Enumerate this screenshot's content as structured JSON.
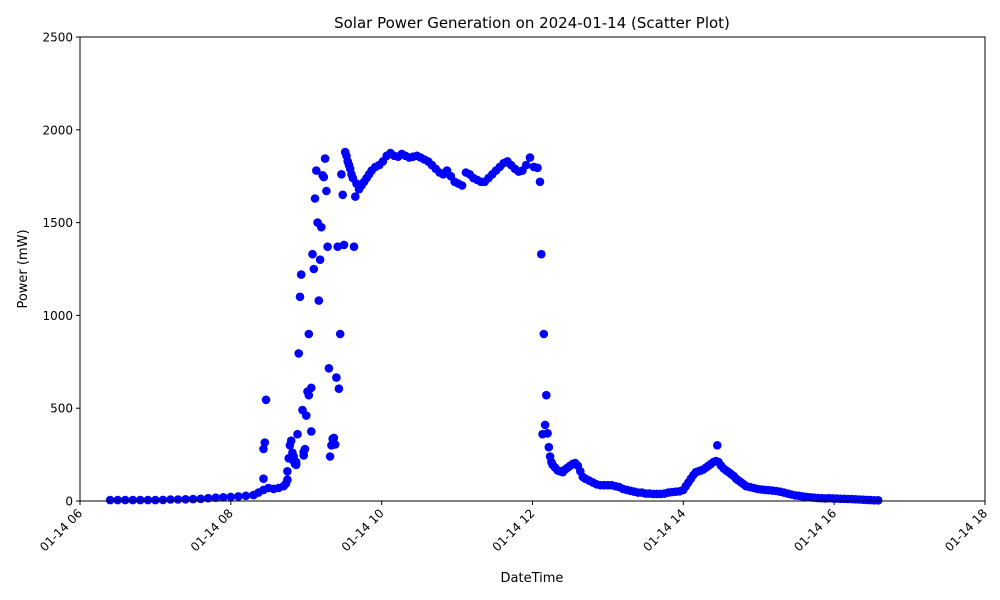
{
  "chart_data": {
    "type": "scatter",
    "title": "Solar Power Generation on 2024-01-14 (Scatter Plot)",
    "xlabel": "DateTime",
    "ylabel": "Power (mW)",
    "xlim_hours": [
      6,
      18
    ],
    "ylim": [
      0,
      2500
    ],
    "x_ticks": [
      {
        "hour": 6,
        "label": "01-14 06"
      },
      {
        "hour": 8,
        "label": "01-14 08"
      },
      {
        "hour": 10,
        "label": "01-14 10"
      },
      {
        "hour": 12,
        "label": "01-14 12"
      },
      {
        "hour": 14,
        "label": "01-14 14"
      },
      {
        "hour": 16,
        "label": "01-14 16"
      },
      {
        "hour": 18,
        "label": "01-14 18"
      }
    ],
    "y_ticks": [
      {
        "value": 0,
        "label": "0"
      },
      {
        "value": 500,
        "label": "500"
      },
      {
        "value": 1000,
        "label": "1000"
      },
      {
        "value": 1500,
        "label": "1500"
      },
      {
        "value": 2000,
        "label": "2000"
      },
      {
        "value": 2500,
        "label": "2500"
      }
    ],
    "grid": false,
    "marker_color": "#0000ff",
    "series": [
      {
        "points": [
          [
            "06:24",
            5
          ],
          [
            "06:30",
            5
          ],
          [
            "06:36",
            5
          ],
          [
            "06:42",
            5
          ],
          [
            "06:48",
            5
          ],
          [
            "06:54",
            5
          ],
          [
            "07:00",
            5
          ],
          [
            "07:06",
            6
          ],
          [
            "07:12",
            8
          ],
          [
            "07:18",
            8
          ],
          [
            "07:24",
            9
          ],
          [
            "07:30",
            10
          ],
          [
            "07:36",
            12
          ],
          [
            "07:42",
            15
          ],
          [
            "07:48",
            18
          ],
          [
            "07:54",
            20
          ],
          [
            "08:00",
            22
          ],
          [
            "08:06",
            25
          ],
          [
            "08:12",
            28
          ],
          [
            "08:18",
            32
          ],
          [
            "08:22",
            45
          ],
          [
            "08:26",
            60
          ],
          [
            "08:26",
            120
          ],
          [
            "08:26",
            280
          ],
          [
            "08:27",
            315
          ],
          [
            "08:28",
            545
          ],
          [
            "08:30",
            70
          ],
          [
            "08:34",
            65
          ],
          [
            "08:38",
            70
          ],
          [
            "08:42",
            80
          ],
          [
            "08:44",
            95
          ],
          [
            "08:45",
            115
          ],
          [
            "08:45",
            160
          ],
          [
            "08:46",
            230
          ],
          [
            "08:47",
            300
          ],
          [
            "08:48",
            325
          ],
          [
            "08:49",
            260
          ],
          [
            "08:50",
            240
          ],
          [
            "08:50",
            215
          ],
          [
            "08:51",
            200
          ],
          [
            "08:52",
            195
          ],
          [
            "08:52",
            210
          ],
          [
            "08:53",
            360
          ],
          [
            "08:54",
            795
          ],
          [
            "08:55",
            1100
          ],
          [
            "08:56",
            1220
          ],
          [
            "08:57",
            490
          ],
          [
            "08:58",
            265
          ],
          [
            "08:58",
            245
          ],
          [
            "08:59",
            280
          ],
          [
            "09:00",
            460
          ],
          [
            "09:01",
            590
          ],
          [
            "09:02",
            570
          ],
          [
            "09:02",
            900
          ],
          [
            "09:04",
            375
          ],
          [
            "09:04",
            610
          ],
          [
            "09:05",
            1330
          ],
          [
            "09:06",
            1250
          ],
          [
            "09:07",
            1630
          ],
          [
            "09:08",
            1780
          ],
          [
            "09:09",
            1500
          ],
          [
            "09:10",
            1080
          ],
          [
            "09:11",
            1300
          ],
          [
            "09:12",
            1475
          ],
          [
            "09:13",
            1755
          ],
          [
            "09:14",
            1745
          ],
          [
            "09:15",
            1845
          ],
          [
            "09:16",
            1670
          ],
          [
            "09:17",
            1370
          ],
          [
            "09:18",
            715
          ],
          [
            "09:19",
            240
          ],
          [
            "09:20",
            300
          ],
          [
            "09:21",
            335
          ],
          [
            "09:22",
            340
          ],
          [
            "09:23",
            305
          ],
          [
            "09:24",
            665
          ],
          [
            "09:25",
            1370
          ],
          [
            "09:26",
            605
          ],
          [
            "09:27",
            900
          ],
          [
            "09:28",
            1760
          ],
          [
            "09:29",
            1650
          ],
          [
            "09:30",
            1380
          ],
          [
            "09:31",
            1880
          ],
          [
            "09:32",
            1860
          ],
          [
            "09:33",
            1830
          ],
          [
            "09:34",
            1810
          ],
          [
            "09:35",
            1790
          ],
          [
            "09:36",
            1760
          ],
          [
            "09:37",
            1740
          ],
          [
            "09:38",
            1370
          ],
          [
            "09:39",
            1640
          ],
          [
            "09:40",
            1710
          ],
          [
            "09:42",
            1680
          ],
          [
            "09:44",
            1700
          ],
          [
            "09:46",
            1720
          ],
          [
            "09:48",
            1740
          ],
          [
            "09:50",
            1760
          ],
          [
            "09:52",
            1780
          ],
          [
            "09:55",
            1800
          ],
          [
            "09:58",
            1810
          ],
          [
            "10:01",
            1830
          ],
          [
            "10:04",
            1860
          ],
          [
            "10:07",
            1875
          ],
          [
            "10:10",
            1860
          ],
          [
            "10:13",
            1855
          ],
          [
            "10:16",
            1870
          ],
          [
            "10:19",
            1860
          ],
          [
            "10:22",
            1850
          ],
          [
            "10:25",
            1855
          ],
          [
            "10:28",
            1860
          ],
          [
            "10:31",
            1850
          ],
          [
            "10:34",
            1840
          ],
          [
            "10:37",
            1830
          ],
          [
            "10:40",
            1810
          ],
          [
            "10:43",
            1790
          ],
          [
            "10:46",
            1770
          ],
          [
            "10:49",
            1760
          ],
          [
            "10:52",
            1780
          ],
          [
            "10:55",
            1750
          ],
          [
            "10:58",
            1720
          ],
          [
            "11:01",
            1710
          ],
          [
            "11:04",
            1700
          ],
          [
            "11:07",
            1770
          ],
          [
            "11:10",
            1760
          ],
          [
            "11:13",
            1740
          ],
          [
            "11:16",
            1730
          ],
          [
            "11:19",
            1720
          ],
          [
            "11:22",
            1720
          ],
          [
            "11:25",
            1740
          ],
          [
            "11:28",
            1760
          ],
          [
            "11:31",
            1780
          ],
          [
            "11:34",
            1800
          ],
          [
            "11:37",
            1820
          ],
          [
            "11:40",
            1830
          ],
          [
            "11:43",
            1810
          ],
          [
            "11:46",
            1790
          ],
          [
            "11:49",
            1775
          ],
          [
            "11:52",
            1780
          ],
          [
            "11:55",
            1810
          ],
          [
            "11:58",
            1850
          ],
          [
            "12:01",
            1800
          ],
          [
            "12:04",
            1795
          ],
          [
            "12:06",
            1720
          ],
          [
            "12:07",
            1330
          ],
          [
            "12:08",
            360
          ],
          [
            "12:09",
            900
          ],
          [
            "12:10",
            410
          ],
          [
            "12:11",
            570
          ],
          [
            "12:12",
            365
          ],
          [
            "12:13",
            290
          ],
          [
            "12:14",
            240
          ],
          [
            "12:15",
            210
          ],
          [
            "12:16",
            195
          ],
          [
            "12:18",
            180
          ],
          [
            "12:20",
            165
          ],
          [
            "12:22",
            160
          ],
          [
            "12:24",
            155
          ],
          [
            "12:26",
            170
          ],
          [
            "12:28",
            180
          ],
          [
            "12:30",
            190
          ],
          [
            "12:32",
            200
          ],
          [
            "12:34",
            205
          ],
          [
            "12:36",
            190
          ],
          [
            "12:38",
            160
          ],
          [
            "12:40",
            130
          ],
          [
            "12:42",
            120
          ],
          [
            "12:45",
            110
          ],
          [
            "12:48",
            100
          ],
          [
            "12:51",
            90
          ],
          [
            "12:54",
            85
          ],
          [
            "12:57",
            85
          ],
          [
            "13:00",
            85
          ],
          [
            "13:03",
            85
          ],
          [
            "13:06",
            80
          ],
          [
            "13:09",
            75
          ],
          [
            "13:12",
            65
          ],
          [
            "13:15",
            60
          ],
          [
            "13:18",
            55
          ],
          [
            "13:21",
            50
          ],
          [
            "13:24",
            45
          ],
          [
            "13:27",
            45
          ],
          [
            "13:30",
            40
          ],
          [
            "13:33",
            40
          ],
          [
            "13:36",
            38
          ],
          [
            "13:39",
            38
          ],
          [
            "13:42",
            38
          ],
          [
            "13:45",
            40
          ],
          [
            "13:48",
            45
          ],
          [
            "13:51",
            48
          ],
          [
            "13:54",
            50
          ],
          [
            "13:57",
            52
          ],
          [
            "14:00",
            60
          ],
          [
            "14:02",
            80
          ],
          [
            "14:04",
            100
          ],
          [
            "14:06",
            120
          ],
          [
            "14:08",
            140
          ],
          [
            "14:10",
            155
          ],
          [
            "14:12",
            160
          ],
          [
            "14:14",
            165
          ],
          [
            "14:16",
            170
          ],
          [
            "14:18",
            180
          ],
          [
            "14:20",
            190
          ],
          [
            "14:22",
            200
          ],
          [
            "14:24",
            210
          ],
          [
            "14:26",
            215
          ],
          [
            "14:27",
            300
          ],
          [
            "14:28",
            210
          ],
          [
            "14:30",
            190
          ],
          [
            "14:32",
            175
          ],
          [
            "14:34",
            165
          ],
          [
            "14:36",
            155
          ],
          [
            "14:38",
            145
          ],
          [
            "14:40",
            135
          ],
          [
            "14:42",
            120
          ],
          [
            "14:44",
            110
          ],
          [
            "14:46",
            100
          ],
          [
            "14:48",
            90
          ],
          [
            "14:50",
            80
          ],
          [
            "14:53",
            75
          ],
          [
            "14:56",
            70
          ],
          [
            "14:59",
            65
          ],
          [
            "15:02",
            62
          ],
          [
            "15:05",
            60
          ],
          [
            "15:08",
            58
          ],
          [
            "15:11",
            56
          ],
          [
            "15:14",
            54
          ],
          [
            "15:17",
            50
          ],
          [
            "15:20",
            45
          ],
          [
            "15:23",
            40
          ],
          [
            "15:26",
            35
          ],
          [
            "15:29",
            30
          ],
          [
            "15:32",
            28
          ],
          [
            "15:35",
            25
          ],
          [
            "15:38",
            22
          ],
          [
            "15:41",
            20
          ],
          [
            "15:44",
            18
          ],
          [
            "15:47",
            16
          ],
          [
            "15:50",
            15
          ],
          [
            "15:53",
            14
          ],
          [
            "15:56",
            15
          ],
          [
            "15:59",
            14
          ],
          [
            "16:02",
            13
          ],
          [
            "16:05",
            12
          ],
          [
            "16:08",
            12
          ],
          [
            "16:11",
            11
          ],
          [
            "16:14",
            10
          ],
          [
            "16:17",
            9
          ],
          [
            "16:20",
            8
          ],
          [
            "16:23",
            7
          ],
          [
            "16:26",
            6
          ],
          [
            "16:29",
            5
          ],
          [
            "16:32",
            4
          ],
          [
            "16:35",
            4
          ]
        ]
      }
    ]
  }
}
